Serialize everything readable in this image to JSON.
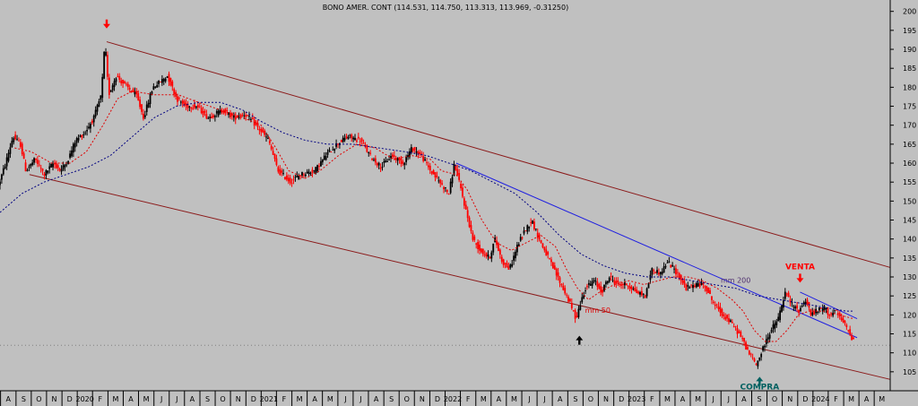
{
  "chart_data": {
    "type": "candlestick",
    "title": "BONO AMER. CONT (114.531, 114.750, 113.313, 113.969, -0.31250)",
    "y_axis": {
      "position": "right",
      "range": [
        100,
        203
      ],
      "ticks": [
        105,
        110,
        115,
        120,
        125,
        130,
        135,
        140,
        145,
        150,
        155,
        160,
        165,
        170,
        175,
        180,
        185,
        190,
        195,
        200
      ]
    },
    "x_axis": {
      "range": [
        2019.58,
        2024.42
      ],
      "ticks": [
        {
          "t": 2019.583,
          "label": "A"
        },
        {
          "t": 2019.667,
          "label": "S"
        },
        {
          "t": 2019.75,
          "label": "O"
        },
        {
          "t": 2019.833,
          "label": "N"
        },
        {
          "t": 2019.917,
          "label": "D"
        },
        {
          "t": 2020.0,
          "label": "2020"
        },
        {
          "t": 2020.083,
          "label": "F"
        },
        {
          "t": 2020.167,
          "label": "M"
        },
        {
          "t": 2020.25,
          "label": "A"
        },
        {
          "t": 2020.333,
          "label": "M"
        },
        {
          "t": 2020.417,
          "label": "J"
        },
        {
          "t": 2020.5,
          "label": "J"
        },
        {
          "t": 2020.583,
          "label": "A"
        },
        {
          "t": 2020.667,
          "label": "S"
        },
        {
          "t": 2020.75,
          "label": "O"
        },
        {
          "t": 2020.833,
          "label": "N"
        },
        {
          "t": 2020.917,
          "label": "D"
        },
        {
          "t": 2021.0,
          "label": "2021"
        },
        {
          "t": 2021.083,
          "label": "F"
        },
        {
          "t": 2021.167,
          "label": "M"
        },
        {
          "t": 2021.25,
          "label": "A"
        },
        {
          "t": 2021.333,
          "label": "M"
        },
        {
          "t": 2021.417,
          "label": "J"
        },
        {
          "t": 2021.5,
          "label": "J"
        },
        {
          "t": 2021.583,
          "label": "A"
        },
        {
          "t": 2021.667,
          "label": "S"
        },
        {
          "t": 2021.75,
          "label": "O"
        },
        {
          "t": 2021.833,
          "label": "N"
        },
        {
          "t": 2021.917,
          "label": "D"
        },
        {
          "t": 2022.0,
          "label": "2022"
        },
        {
          "t": 2022.083,
          "label": "F"
        },
        {
          "t": 2022.167,
          "label": "M"
        },
        {
          "t": 2022.25,
          "label": "A"
        },
        {
          "t": 2022.333,
          "label": "M"
        },
        {
          "t": 2022.417,
          "label": "J"
        },
        {
          "t": 2022.5,
          "label": "J"
        },
        {
          "t": 2022.583,
          "label": "A"
        },
        {
          "t": 2022.667,
          "label": "S"
        },
        {
          "t": 2022.75,
          "label": "O"
        },
        {
          "t": 2022.833,
          "label": "N"
        },
        {
          "t": 2022.917,
          "label": "D"
        },
        {
          "t": 2023.0,
          "label": "2023"
        },
        {
          "t": 2023.083,
          "label": "F"
        },
        {
          "t": 2023.167,
          "label": "M"
        },
        {
          "t": 2023.25,
          "label": "A"
        },
        {
          "t": 2023.333,
          "label": "M"
        },
        {
          "t": 2023.417,
          "label": "J"
        },
        {
          "t": 2023.5,
          "label": "J"
        },
        {
          "t": 2023.583,
          "label": "A"
        },
        {
          "t": 2023.667,
          "label": "S"
        },
        {
          "t": 2023.75,
          "label": "O"
        },
        {
          "t": 2023.833,
          "label": "N"
        },
        {
          "t": 2023.917,
          "label": "D"
        },
        {
          "t": 2024.0,
          "label": "2024"
        },
        {
          "t": 2024.083,
          "label": "F"
        },
        {
          "t": 2024.167,
          "label": "M"
        },
        {
          "t": 2024.25,
          "label": "A"
        },
        {
          "t": 2024.333,
          "label": "M"
        }
      ]
    },
    "grid": false,
    "reference_line": {
      "y": 112,
      "style": "dotted",
      "color": "#808080"
    },
    "price_path": [
      [
        2019.58,
        154
      ],
      [
        2019.62,
        160
      ],
      [
        2019.66,
        167
      ],
      [
        2019.7,
        165
      ],
      [
        2019.73,
        158
      ],
      [
        2019.78,
        161
      ],
      [
        2019.83,
        157
      ],
      [
        2019.88,
        160
      ],
      [
        2019.92,
        158
      ],
      [
        2019.96,
        161
      ],
      [
        2020.0,
        166
      ],
      [
        2020.05,
        168
      ],
      [
        2020.1,
        172
      ],
      [
        2020.14,
        178
      ],
      [
        2020.16,
        192
      ],
      [
        2020.18,
        178
      ],
      [
        2020.22,
        183
      ],
      [
        2020.28,
        180
      ],
      [
        2020.33,
        178
      ],
      [
        2020.37,
        172
      ],
      [
        2020.42,
        180
      ],
      [
        2020.5,
        183
      ],
      [
        2020.55,
        177
      ],
      [
        2020.6,
        175
      ],
      [
        2020.66,
        175
      ],
      [
        2020.72,
        172
      ],
      [
        2020.8,
        174
      ],
      [
        2020.86,
        172
      ],
      [
        2020.92,
        173
      ],
      [
        2020.98,
        170
      ],
      [
        2021.05,
        166
      ],
      [
        2021.1,
        158
      ],
      [
        2021.17,
        155
      ],
      [
        2021.22,
        157
      ],
      [
        2021.3,
        158
      ],
      [
        2021.36,
        162
      ],
      [
        2021.42,
        165
      ],
      [
        2021.48,
        167
      ],
      [
        2021.55,
        166
      ],
      [
        2021.6,
        162
      ],
      [
        2021.66,
        159
      ],
      [
        2021.72,
        162
      ],
      [
        2021.78,
        160
      ],
      [
        2021.83,
        164
      ],
      [
        2021.88,
        162
      ],
      [
        2021.93,
        158
      ],
      [
        2021.98,
        155
      ],
      [
        2022.03,
        152
      ],
      [
        2022.06,
        160
      ],
      [
        2022.1,
        152
      ],
      [
        2022.16,
        140
      ],
      [
        2022.2,
        137
      ],
      [
        2022.25,
        135
      ],
      [
        2022.28,
        140
      ],
      [
        2022.32,
        134
      ],
      [
        2022.36,
        132
      ],
      [
        2022.4,
        138
      ],
      [
        2022.44,
        142
      ],
      [
        2022.48,
        145
      ],
      [
        2022.52,
        140
      ],
      [
        2022.56,
        136
      ],
      [
        2022.62,
        130
      ],
      [
        2022.68,
        124
      ],
      [
        2022.72,
        119
      ],
      [
        2022.77,
        127
      ],
      [
        2022.82,
        129
      ],
      [
        2022.86,
        126
      ],
      [
        2022.9,
        130
      ],
      [
        2022.95,
        128
      ],
      [
        2023.0,
        128
      ],
      [
        2023.05,
        126
      ],
      [
        2023.1,
        125
      ],
      [
        2023.13,
        132
      ],
      [
        2023.18,
        131
      ],
      [
        2023.22,
        134
      ],
      [
        2023.27,
        131
      ],
      [
        2023.32,
        127
      ],
      [
        2023.37,
        128
      ],
      [
        2023.42,
        128
      ],
      [
        2023.47,
        123
      ],
      [
        2023.52,
        120
      ],
      [
        2023.58,
        117
      ],
      [
        2023.62,
        114
      ],
      [
        2023.66,
        110
      ],
      [
        2023.7,
        107
      ],
      [
        2023.72,
        109
      ],
      [
        2023.77,
        115
      ],
      [
        2023.82,
        119
      ],
      [
        2023.86,
        126
      ],
      [
        2023.89,
        123
      ],
      [
        2023.93,
        121
      ],
      [
        2023.97,
        124
      ],
      [
        2024.0,
        120
      ],
      [
        2024.03,
        121
      ],
      [
        2024.07,
        122
      ],
      [
        2024.1,
        120
      ],
      [
        2024.13,
        121
      ],
      [
        2024.16,
        119
      ],
      [
        2024.2,
        116
      ],
      [
        2024.22,
        114
      ]
    ],
    "series": [
      {
        "name": "mm 50",
        "color": "#e00000",
        "style": "dashed",
        "points": [
          [
            2019.66,
            164
          ],
          [
            2019.75,
            163
          ],
          [
            2019.86,
            160
          ],
          [
            2019.96,
            160
          ],
          [
            2020.05,
            163
          ],
          [
            2020.14,
            170
          ],
          [
            2020.22,
            177
          ],
          [
            2020.3,
            179
          ],
          [
            2020.42,
            178
          ],
          [
            2020.55,
            178
          ],
          [
            2020.66,
            176
          ],
          [
            2020.78,
            174
          ],
          [
            2020.9,
            172
          ],
          [
            2021.0,
            170
          ],
          [
            2021.08,
            164
          ],
          [
            2021.15,
            158
          ],
          [
            2021.24,
            156
          ],
          [
            2021.32,
            158
          ],
          [
            2021.42,
            162
          ],
          [
            2021.52,
            165
          ],
          [
            2021.62,
            164
          ],
          [
            2021.72,
            161
          ],
          [
            2021.82,
            162
          ],
          [
            2021.92,
            161
          ],
          [
            2021.98,
            158
          ],
          [
            2022.06,
            157
          ],
          [
            2022.12,
            153
          ],
          [
            2022.2,
            145
          ],
          [
            2022.28,
            139
          ],
          [
            2022.36,
            137
          ],
          [
            2022.44,
            139
          ],
          [
            2022.52,
            141
          ],
          [
            2022.6,
            138
          ],
          [
            2022.66,
            132
          ],
          [
            2022.72,
            127
          ],
          [
            2022.78,
            124
          ],
          [
            2022.84,
            126
          ],
          [
            2022.92,
            128
          ],
          [
            2023.0,
            129
          ],
          [
            2023.08,
            128
          ],
          [
            2023.16,
            129
          ],
          [
            2023.24,
            130
          ],
          [
            2023.32,
            130
          ],
          [
            2023.4,
            129
          ],
          [
            2023.48,
            127
          ],
          [
            2023.56,
            124
          ],
          [
            2023.62,
            121
          ],
          [
            2023.68,
            116
          ],
          [
            2023.74,
            113
          ],
          [
            2023.8,
            113
          ],
          [
            2023.86,
            116
          ],
          [
            2023.92,
            120
          ],
          [
            2023.98,
            121
          ],
          [
            2024.06,
            121
          ],
          [
            2024.14,
            120
          ],
          [
            2024.22,
            119
          ]
        ]
      },
      {
        "name": "mm 200",
        "color": "#000080",
        "style": "dashed",
        "points": [
          [
            2019.58,
            147
          ],
          [
            2019.7,
            152
          ],
          [
            2019.82,
            155
          ],
          [
            2019.94,
            157
          ],
          [
            2020.06,
            159
          ],
          [
            2020.18,
            162
          ],
          [
            2020.3,
            167
          ],
          [
            2020.42,
            172
          ],
          [
            2020.54,
            175
          ],
          [
            2020.66,
            176
          ],
          [
            2020.78,
            176
          ],
          [
            2020.9,
            174
          ],
          [
            2021.0,
            171
          ],
          [
            2021.12,
            168
          ],
          [
            2021.24,
            166
          ],
          [
            2021.36,
            165
          ],
          [
            2021.5,
            165
          ],
          [
            2021.64,
            164
          ],
          [
            2021.78,
            163
          ],
          [
            2021.9,
            162
          ],
          [
            2022.02,
            160
          ],
          [
            2022.14,
            158
          ],
          [
            2022.26,
            155
          ],
          [
            2022.38,
            152
          ],
          [
            2022.5,
            147
          ],
          [
            2022.62,
            141
          ],
          [
            2022.74,
            136
          ],
          [
            2022.86,
            133
          ],
          [
            2022.98,
            131
          ],
          [
            2023.1,
            130
          ],
          [
            2023.22,
            130
          ],
          [
            2023.34,
            129
          ],
          [
            2023.46,
            128
          ],
          [
            2023.58,
            127
          ],
          [
            2023.7,
            125
          ],
          [
            2023.82,
            124
          ],
          [
            2023.94,
            123
          ],
          [
            2024.06,
            122
          ],
          [
            2024.18,
            121
          ],
          [
            2024.22,
            121
          ]
        ]
      }
    ],
    "trendlines": [
      {
        "name": "upper-channel",
        "color": "#8b1a1a",
        "from": [
          2020.16,
          192
        ],
        "to": [
          2024.42,
          132.5
        ]
      },
      {
        "name": "lower-channel",
        "color": "#8b1a1a",
        "from": [
          2019.74,
          157
        ],
        "to": [
          2024.42,
          103
        ]
      },
      {
        "name": "resistance-line",
        "color": "#2020e0",
        "from": [
          2022.06,
          160
        ],
        "to": [
          2024.24,
          114
        ]
      },
      {
        "name": "parallel-line",
        "color": "#2020e0",
        "from": [
          2023.93,
          126
        ],
        "to": [
          2024.24,
          119
        ]
      }
    ],
    "annotations": [
      {
        "name": "top-arrow",
        "type": "arrow-down",
        "color": "#ff0000",
        "at": [
          2020.16,
          195.5
        ]
      },
      {
        "name": "low-arrow",
        "type": "arrow-up",
        "color": "#000000",
        "at": [
          2022.73,
          114.5
        ]
      },
      {
        "name": "compra-arrow",
        "type": "arrow-up",
        "color": "#006060",
        "at": [
          2023.71,
          103.7
        ]
      },
      {
        "name": "venta-arrow",
        "type": "arrow-down",
        "color": "#ff0000",
        "at": [
          2023.93,
          128.5
        ]
      },
      {
        "name": "venta-label",
        "type": "text",
        "text": "VENTA",
        "color": "#ff0000",
        "at": [
          2023.93,
          132
        ]
      },
      {
        "name": "compra-label",
        "type": "text",
        "text": "COMPRA",
        "color": "#006060",
        "at": [
          2023.71,
          100.4
        ]
      },
      {
        "name": "mm50-label",
        "type": "text",
        "text": "mm 50",
        "color": "#e00000",
        "at": [
          2022.83,
          120.5
        ]
      },
      {
        "name": "mm200-label",
        "type": "text",
        "text": "mm 200",
        "color": "#503070",
        "at": [
          2023.58,
          128.5
        ]
      }
    ]
  }
}
